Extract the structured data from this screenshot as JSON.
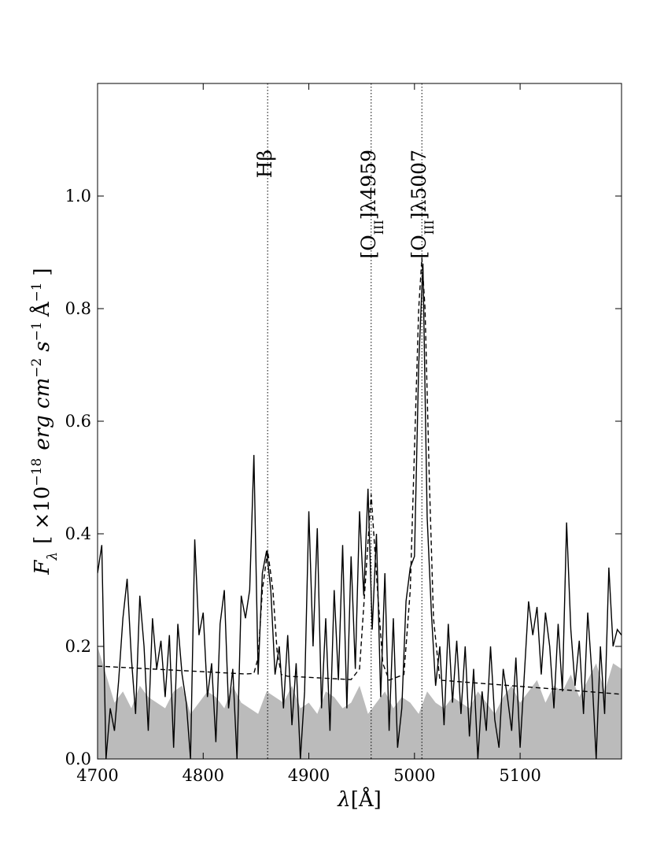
{
  "chart_data": {
    "type": "line",
    "xlabel": [
      "λ",
      "[Å]"
    ],
    "ylabel": [
      "F",
      "λ",
      "[ ×10",
      "−18",
      "erg cm",
      "−2",
      "s",
      "−1",
      "Å",
      "−1",
      "]"
    ],
    "xlim": [
      4700,
      5196
    ],
    "ylim": [
      0,
      1.2
    ],
    "xticks": [
      4700,
      4800,
      4900,
      5000,
      5100
    ],
    "yticks": [
      {
        "value": 0,
        "label": "0.0"
      },
      0.2,
      0.4,
      0.6,
      {
        "value": 1,
        "label": "1.0"
      },
      0.8
    ],
    "lines": [
      {
        "x": 4861,
        "label": [
          "H",
          "β"
        ]
      },
      {
        "x": 4959,
        "label": [
          "[O",
          "III",
          "]λ4959"
        ]
      },
      {
        "x": 5007,
        "label": [
          "[O",
          "III",
          "]λ5007"
        ]
      }
    ],
    "noise": {
      "color": "#bbbbbb",
      "x": [
        4700,
        4708,
        4716,
        4724,
        4732,
        4740,
        4748,
        4756,
        4764,
        4772,
        4780,
        4788,
        4796,
        4804,
        4812,
        4820,
        4828,
        4836,
        4844,
        4852,
        4860,
        4868,
        4876,
        4884,
        4892,
        4900,
        4908,
        4916,
        4924,
        4932,
        4940,
        4948,
        4956,
        4964,
        4972,
        4980,
        4988,
        4996,
        5004,
        5012,
        5020,
        5028,
        5036,
        5044,
        5052,
        5060,
        5068,
        5076,
        5084,
        5092,
        5100,
        5108,
        5116,
        5124,
        5132,
        5140,
        5148,
        5156,
        5164,
        5172,
        5180,
        5188,
        5196
      ],
      "values": [
        0.2,
        0.15,
        0.1,
        0.12,
        0.09,
        0.13,
        0.11,
        0.1,
        0.09,
        0.12,
        0.13,
        0.08,
        0.1,
        0.12,
        0.11,
        0.09,
        0.13,
        0.1,
        0.09,
        0.08,
        0.12,
        0.11,
        0.1,
        0.13,
        0.09,
        0.1,
        0.08,
        0.12,
        0.11,
        0.09,
        0.1,
        0.13,
        0.08,
        0.1,
        0.12,
        0.09,
        0.11,
        0.1,
        0.08,
        0.12,
        0.1,
        0.09,
        0.11,
        0.1,
        0.09,
        0.12,
        0.1,
        0.08,
        0.11,
        0.13,
        0.1,
        0.12,
        0.14,
        0.1,
        0.13,
        0.12,
        0.15,
        0.11,
        0.14,
        0.17,
        0.12,
        0.17,
        0.16
      ]
    },
    "spectrum": {
      "color": "#000000",
      "x": [
        4700,
        4704,
        4708,
        4712,
        4716,
        4720,
        4724,
        4728,
        4732,
        4736,
        4740,
        4744,
        4748,
        4752,
        4756,
        4760,
        4764,
        4768,
        4772,
        4776,
        4780,
        4784,
        4788,
        4792,
        4796,
        4800,
        4804,
        4808,
        4812,
        4816,
        4820,
        4824,
        4828,
        4832,
        4836,
        4840,
        4844,
        4848,
        4852,
        4856,
        4860,
        4864,
        4868,
        4872,
        4876,
        4880,
        4884,
        4888,
        4892,
        4896,
        4900,
        4904,
        4908,
        4912,
        4916,
        4920,
        4924,
        4928,
        4932,
        4936,
        4940,
        4944,
        4948,
        4952,
        4956,
        4960,
        4964,
        4968,
        4972,
        4976,
        4980,
        4984,
        4988,
        4992,
        4996,
        5000,
        5004,
        5008,
        5012,
        5016,
        5020,
        5024,
        5028,
        5032,
        5036,
        5040,
        5044,
        5048,
        5052,
        5056,
        5060,
        5064,
        5068,
        5072,
        5076,
        5080,
        5084,
        5088,
        5092,
        5096,
        5100,
        5104,
        5108,
        5112,
        5116,
        5120,
        5124,
        5128,
        5132,
        5136,
        5140,
        5144,
        5148,
        5152,
        5156,
        5160,
        5164,
        5168,
        5172,
        5176,
        5180,
        5184,
        5188,
        5192,
        5196
      ],
      "values": [
        0.33,
        0.38,
        0.0,
        0.09,
        0.05,
        0.14,
        0.25,
        0.32,
        0.18,
        0.08,
        0.29,
        0.2,
        0.05,
        0.25,
        0.16,
        0.21,
        0.11,
        0.22,
        0.02,
        0.24,
        0.15,
        0.1,
        0.0,
        0.39,
        0.22,
        0.26,
        0.11,
        0.17,
        0.03,
        0.24,
        0.3,
        0.09,
        0.16,
        0.0,
        0.29,
        0.25,
        0.3,
        0.54,
        0.15,
        0.33,
        0.37,
        0.3,
        0.15,
        0.2,
        0.09,
        0.22,
        0.06,
        0.17,
        0.0,
        0.12,
        0.44,
        0.2,
        0.41,
        0.09,
        0.25,
        0.05,
        0.3,
        0.14,
        0.38,
        0.09,
        0.36,
        0.16,
        0.44,
        0.29,
        0.48,
        0.23,
        0.4,
        0.11,
        0.33,
        0.05,
        0.25,
        0.02,
        0.09,
        0.28,
        0.34,
        0.36,
        0.7,
        0.88,
        0.43,
        0.26,
        0.13,
        0.2,
        0.06,
        0.24,
        0.1,
        0.21,
        0.08,
        0.2,
        0.04,
        0.16,
        0.0,
        0.12,
        0.05,
        0.2,
        0.07,
        0.02,
        0.16,
        0.11,
        0.05,
        0.18,
        0.02,
        0.15,
        0.28,
        0.22,
        0.27,
        0.15,
        0.26,
        0.2,
        0.09,
        0.24,
        0.12,
        0.42,
        0.23,
        0.13,
        0.21,
        0.08,
        0.26,
        0.15,
        0.0,
        0.2,
        0.08,
        0.34,
        0.2,
        0.23,
        0.22
      ]
    },
    "model": {
      "color": "#000000",
      "dashed": true,
      "x": [
        4700,
        4840,
        4848,
        4852,
        4856,
        4861,
        4866,
        4870,
        4874,
        4880,
        4940,
        4948,
        4953,
        4959,
        4965,
        4970,
        4976,
        4990,
        4996,
        5000,
        5004,
        5007,
        5010,
        5014,
        5018,
        5024,
        5196
      ],
      "values": [
        0.165,
        0.151,
        0.152,
        0.18,
        0.3,
        0.37,
        0.3,
        0.19,
        0.15,
        0.147,
        0.141,
        0.16,
        0.3,
        0.47,
        0.3,
        0.17,
        0.14,
        0.15,
        0.3,
        0.55,
        0.8,
        0.89,
        0.8,
        0.5,
        0.25,
        0.14,
        0.115
      ]
    }
  }
}
